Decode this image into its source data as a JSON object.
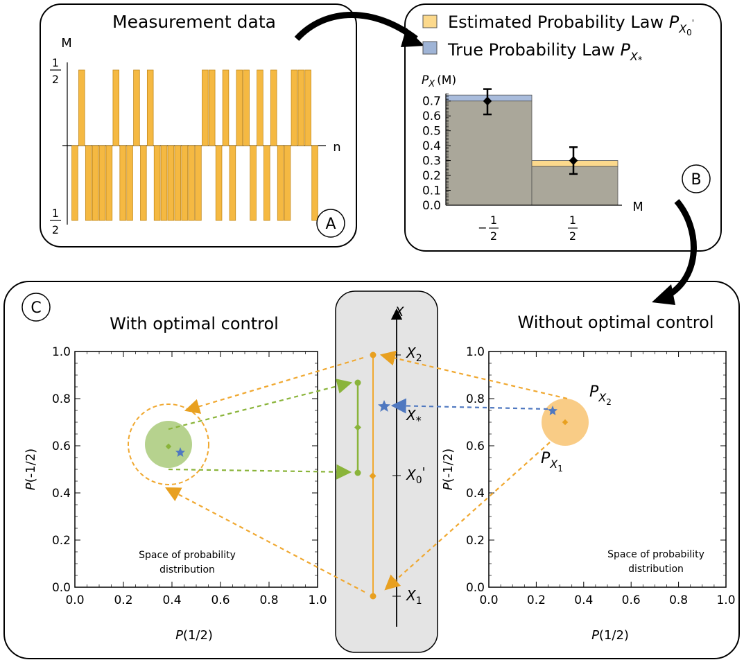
{
  "colors": {
    "orange": "#f5b942",
    "orange_dark": "#e8a020",
    "blue": "#9fb4d6",
    "gray_fill": "#aaa79a",
    "green": "#8ab43a",
    "green_fill": "#a9c97a",
    "star_blue": "#4f78c0",
    "panel_gray": "#e4e4e4"
  },
  "panelA": {
    "title": "Measurement data",
    "label": "A",
    "y_axis_label": "M",
    "x_axis_label": "n",
    "top_tick_num": "1",
    "top_tick_den": "2",
    "bottom_tick_num": "1",
    "bottom_tick_den": "2",
    "signs": [
      "-",
      "+",
      "-",
      "-",
      "-",
      "-",
      "+",
      "-",
      "-",
      "+",
      "-",
      "+",
      "-",
      "-",
      "-",
      "-",
      "-",
      "-",
      "-",
      "+",
      "+",
      "-",
      "+",
      "-",
      "+",
      "+",
      "-",
      "+",
      "-",
      "+",
      "-",
      "-",
      "+",
      "+",
      "+",
      "-"
    ]
  },
  "panelB": {
    "label": "B",
    "legend": {
      "estimated_text": "Estimated Probability Law ",
      "estimated_sym": "P",
      "estimated_sub": "X",
      "estimated_subsub": "0",
      "estimated_prime": "'",
      "true_text": "True Probability Law ",
      "true_sym": "P",
      "true_sub": "X",
      "true_subsub": "*"
    },
    "y_axis_sym": "P",
    "y_axis_sub": "X",
    "y_axis_arg": "(M)",
    "x_axis_label": "M",
    "cat1_sign": "−",
    "cat1_num": "1",
    "cat1_den": "2",
    "cat2_num": "1",
    "cat2_den": "2",
    "yticks": [
      "0.0",
      "0.1",
      "0.2",
      "0.3",
      "0.4",
      "0.5",
      "0.6",
      "0.7"
    ]
  },
  "panelC": {
    "label": "C",
    "left_title": "With optimal control",
    "right_title": "Without optimal control",
    "axis_x_label_italic": "P",
    "axis_x_label_rest": "(1/2)",
    "axis_y_label_italic": "P",
    "axis_y_label_rest": "(-1/2)",
    "ticks": [
      "0.0",
      "0.2",
      "0.4",
      "0.6",
      "0.8",
      "1.0"
    ],
    "space_label_line1": "Space of probability",
    "space_label_line2": "distribution",
    "center_axis_label": "X",
    "x2_label": "X",
    "x2_sub": "2",
    "xstar_label": "X",
    "xstar_sub": "*",
    "x0_label": "X",
    "x0_sub": "0",
    "x0_prime": "'",
    "x1_label": "X",
    "x1_sub": "1",
    "px2_sym": "P",
    "px2_sub": "X",
    "px2_subsub": "2",
    "px1_sym": "P",
    "px1_sub": "X",
    "px1_subsub": "1"
  },
  "chart_data": [
    {
      "type": "bar",
      "categories": [
        "-1/2",
        "1/2"
      ],
      "series": [
        {
          "name": "Estimated Probability Law",
          "values": [
            0.7,
            0.3
          ]
        },
        {
          "name": "True Probability Law",
          "values": [
            0.74,
            0.26
          ]
        }
      ],
      "error_bars": [
        {
          "category": "-1/2",
          "center": 0.7,
          "low": 0.61,
          "high": 0.78
        },
        {
          "category": "1/2",
          "center": 0.3,
          "low": 0.21,
          "high": 0.39
        }
      ],
      "ylim": [
        0,
        0.75
      ],
      "legend_position": "top"
    }
  ]
}
